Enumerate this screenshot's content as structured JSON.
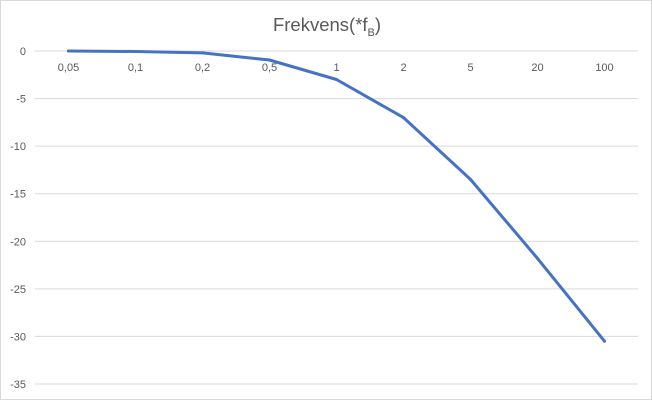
{
  "chart_data": {
    "type": "line",
    "title": "Frekvens(*f",
    "title_subscript": "B",
    "title_close": ")",
    "categories": [
      "0,05",
      "0,1",
      "0,2",
      "0,5",
      "1",
      "2",
      "5",
      "20",
      "100"
    ],
    "series": [
      {
        "values": [
          0,
          -0.05,
          -0.2,
          -0.95,
          -3.0,
          -7.0,
          -13.5,
          -21.8,
          -30.5
        ]
      }
    ],
    "y_ticks": [
      "0",
      "-5",
      "-10",
      "-15",
      "-20",
      "-25",
      "-30",
      "-35"
    ],
    "ylim": [
      -35,
      0
    ],
    "grid": true,
    "legend": "none",
    "colors": {
      "line": "#4472c4",
      "grid": "#d9d9d9",
      "text": "#595959"
    }
  }
}
